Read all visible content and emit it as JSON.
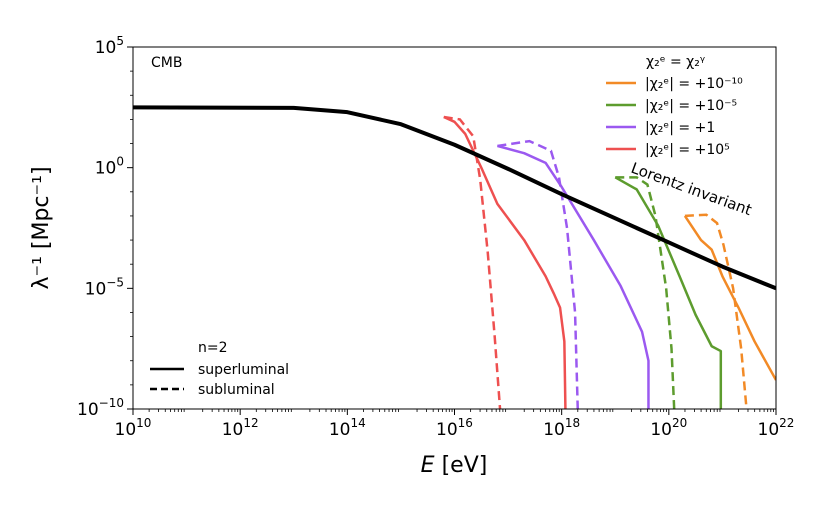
{
  "chart_data": {
    "type": "line",
    "title": "",
    "panel_label": "CMB",
    "xlabel_italic": "E",
    "xlabel_unit": " [eV]",
    "ylabel": "λ⁻¹ [Mpc⁻¹]",
    "x_scale": "log",
    "y_scale": "log",
    "xlim_exp": [
      10,
      22
    ],
    "ylim_exp": [
      -10,
      5
    ],
    "x_ticks": [
      {
        "base": "10",
        "exp": "10",
        "value": 10
      },
      {
        "base": "10",
        "exp": "12",
        "value": 12
      },
      {
        "base": "10",
        "exp": "14",
        "value": 14
      },
      {
        "base": "10",
        "exp": "16",
        "value": 16
      },
      {
        "base": "10",
        "exp": "18",
        "value": 18
      },
      {
        "base": "10",
        "exp": "20",
        "value": 20
      },
      {
        "base": "10",
        "exp": "22",
        "value": 22
      }
    ],
    "y_ticks": [
      {
        "base": "10",
        "exp": "5",
        "value": 5
      },
      {
        "base": "10",
        "exp": "0",
        "value": 0
      },
      {
        "base": "10",
        "exp": "−5",
        "value": -5
      },
      {
        "base": "10",
        "exp": "−10",
        "value": -10
      }
    ],
    "legend_title": "χ₂ᵉ = χ₂ᵞ",
    "legend_location": "top-right",
    "style_legend_title": "n=2",
    "style_legend_location": "lower-left",
    "style_legend": [
      {
        "label": "superluminal",
        "dash": "solid"
      },
      {
        "label": "subluminal",
        "dash": "dashed"
      }
    ],
    "reference_line": {
      "name": "Lorentz invariant",
      "color": "#000000",
      "points": [
        [
          10,
          2.5
        ],
        [
          13,
          2.48
        ],
        [
          14,
          2.3
        ],
        [
          15,
          1.8
        ],
        [
          16,
          0.95
        ],
        [
          17,
          -0.05
        ],
        [
          18,
          -1.1
        ],
        [
          19,
          -2.1
        ],
        [
          20,
          -3.1
        ],
        [
          21,
          -4.1
        ],
        [
          22,
          -5.0
        ]
      ]
    },
    "series": [
      {
        "name": "|χ₂ᵉ| = +10⁻¹⁰",
        "color": "#f28a26",
        "superluminal": [
          [
            20.3,
            -2.0
          ],
          [
            20.6,
            -3.0
          ],
          [
            20.8,
            -3.4
          ],
          [
            21.0,
            -4.5
          ],
          [
            21.3,
            -5.8
          ],
          [
            21.6,
            -7.2
          ],
          [
            22.0,
            -8.8
          ]
        ],
        "subluminal": [
          [
            20.3,
            -2.0
          ],
          [
            20.7,
            -1.95
          ],
          [
            20.9,
            -2.3
          ],
          [
            21.02,
            -3.2
          ],
          [
            21.2,
            -5.0
          ],
          [
            21.35,
            -7.5
          ],
          [
            21.45,
            -10.0
          ]
        ]
      },
      {
        "name": "|χ₂ᵉ| = +10⁻⁵",
        "color": "#5d9c2e",
        "superluminal": [
          [
            19.0,
            -0.4
          ],
          [
            19.4,
            -0.9
          ],
          [
            19.8,
            -2.4
          ],
          [
            20.2,
            -4.5
          ],
          [
            20.5,
            -6.1
          ],
          [
            20.8,
            -7.4
          ],
          [
            20.97,
            -7.6
          ],
          [
            20.97,
            -10.0
          ]
        ],
        "subluminal": [
          [
            19.0,
            -0.4
          ],
          [
            19.4,
            -0.4
          ],
          [
            19.6,
            -0.7
          ],
          [
            19.75,
            -2.0
          ],
          [
            19.95,
            -5.0
          ],
          [
            20.05,
            -7.5
          ],
          [
            20.1,
            -10.0
          ]
        ]
      },
      {
        "name": "|χ₂ᵉ| = +1",
        "color": "#9b59f0",
        "superluminal": [
          [
            16.8,
            0.9
          ],
          [
            17.3,
            0.6
          ],
          [
            17.7,
            0.2
          ],
          [
            18.0,
            -0.8
          ],
          [
            18.6,
            -3.0
          ],
          [
            19.1,
            -4.9
          ],
          [
            19.5,
            -6.8
          ],
          [
            19.62,
            -8.0
          ],
          [
            19.62,
            -10.0
          ]
        ],
        "subluminal": [
          [
            16.8,
            0.9
          ],
          [
            17.4,
            1.1
          ],
          [
            17.8,
            0.7
          ],
          [
            17.95,
            -0.4
          ],
          [
            18.1,
            -2.5
          ],
          [
            18.25,
            -6.0
          ],
          [
            18.3,
            -10.0
          ]
        ]
      },
      {
        "name": "|χ₂ᵉ| = +10⁵",
        "color": "#ee5050",
        "superluminal": [
          [
            15.8,
            2.1
          ],
          [
            16.0,
            1.9
          ],
          [
            16.2,
            1.4
          ],
          [
            16.5,
            0.0
          ],
          [
            16.8,
            -1.5
          ],
          [
            17.3,
            -3.0
          ],
          [
            17.7,
            -4.5
          ],
          [
            17.85,
            -5.2
          ],
          [
            17.97,
            -5.8
          ],
          [
            18.05,
            -7.2
          ],
          [
            18.07,
            -10.0
          ]
        ],
        "subluminal": [
          [
            15.8,
            2.1
          ],
          [
            16.1,
            2.0
          ],
          [
            16.35,
            1.3
          ],
          [
            16.48,
            -0.5
          ],
          [
            16.62,
            -3.5
          ],
          [
            16.75,
            -7.0
          ],
          [
            16.85,
            -10.0
          ]
        ]
      }
    ]
  }
}
